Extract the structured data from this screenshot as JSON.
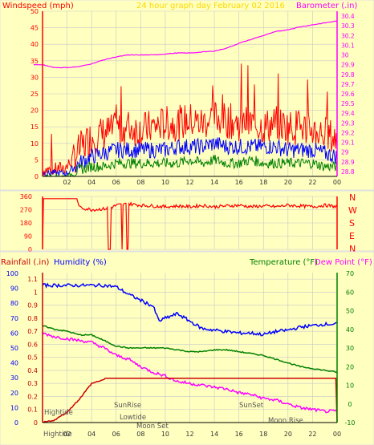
{
  "header": {
    "wind_label": "Windspeed (mph)",
    "title": "24 hour graph day   February 02 2016",
    "baro_label": "Barometer (.in)"
  },
  "direction": {
    "letters": [
      "N",
      "W",
      "S",
      "E",
      "N"
    ]
  },
  "bottom_header": {
    "rain_label": "Rainfall (.in)",
    "humidity_label": "Humidity (%)",
    "temp_label": "Temperature (°F)",
    "dew_label": "Dew Point (°F)"
  },
  "colors": {
    "wind_gust": "#ff0000",
    "wind_avg": "#0000ff",
    "wind_min": "#008000",
    "barometer": "#ff00ff",
    "direction": "#ff0000",
    "humidity": "#0000ff",
    "temperature": "#008000",
    "dewpoint": "#ff00ff",
    "rainfall": "#cc0000",
    "plot_bg": "#ffffc0",
    "grid": "#c8c8c8"
  },
  "chart_data": [
    {
      "type": "line",
      "name": "windspeed",
      "x_ticks": [
        "02",
        "04",
        "06",
        "08",
        "10",
        "12",
        "14",
        "16",
        "18",
        "20",
        "22",
        "00"
      ],
      "y_left_ticks": [
        0,
        5,
        10,
        15,
        20,
        25,
        30,
        35,
        40,
        45,
        50
      ],
      "y_right_ticks": [
        "28.8",
        "28.9",
        "29",
        "29.1",
        "29.2",
        "29.3",
        "29.4",
        "29.5",
        "29.6",
        "29.7",
        "29.8",
        "29.9",
        "30",
        "30.1",
        "30.2",
        "30.3",
        "30.4"
      ],
      "ylim": [
        0,
        50
      ],
      "ylim_right": [
        28.75,
        30.45
      ],
      "series": [
        {
          "role": "gust",
          "x": [
            0,
            1,
            2,
            3,
            4,
            5,
            6,
            7,
            8,
            9,
            10,
            11,
            12,
            13,
            14,
            15,
            16,
            17,
            18,
            19,
            20,
            21,
            22,
            23,
            24
          ],
          "values": [
            2,
            2,
            3,
            8,
            12,
            13,
            14,
            15,
            14,
            15,
            16,
            16,
            17,
            16,
            18,
            17,
            16,
            16,
            15,
            16,
            15,
            15,
            14,
            13,
            11
          ]
        },
        {
          "role": "average",
          "x": [
            0,
            1,
            2,
            3,
            4,
            5,
            6,
            7,
            8,
            9,
            10,
            11,
            12,
            13,
            14,
            15,
            16,
            17,
            18,
            19,
            20,
            21,
            22,
            23,
            24
          ],
          "values": [
            1,
            1,
            1,
            4,
            6,
            7,
            8,
            8,
            8,
            8,
            8,
            9,
            9,
            9,
            10,
            9,
            9,
            9,
            9,
            9,
            8,
            8,
            8,
            7,
            6
          ]
        },
        {
          "role": "minimum",
          "x": [
            0,
            1,
            2,
            3,
            4,
            5,
            6,
            7,
            8,
            9,
            10,
            11,
            12,
            13,
            14,
            15,
            16,
            17,
            18,
            19,
            20,
            21,
            22,
            23,
            24
          ],
          "values": [
            0,
            0,
            0,
            2,
            3,
            3,
            4,
            4,
            4,
            4,
            4,
            4,
            5,
            4,
            5,
            4,
            4,
            5,
            4,
            4,
            4,
            4,
            4,
            3,
            3
          ]
        },
        {
          "role": "barometer",
          "x": [
            0,
            1,
            2,
            3,
            4,
            5,
            6,
            7,
            8,
            9,
            10,
            11,
            12,
            13,
            14,
            15,
            16,
            17,
            18,
            19,
            20,
            21,
            22,
            23,
            24
          ],
          "values": [
            29.9,
            29.87,
            29.87,
            29.88,
            29.91,
            29.95,
            29.98,
            30.0,
            30.0,
            30.0,
            30.01,
            30.02,
            30.02,
            30.03,
            30.04,
            30.07,
            30.12,
            30.16,
            30.2,
            30.24,
            30.26,
            30.29,
            30.31,
            30.33,
            30.35
          ]
        }
      ]
    },
    {
      "type": "line",
      "name": "wind_direction",
      "y_ticks": [
        0,
        90,
        180,
        270,
        360
      ],
      "ylim": [
        0,
        360
      ],
      "series": [
        {
          "role": "direction",
          "x": [
            0,
            0.05,
            0.6,
            1.5,
            2.8,
            3.0,
            4,
            5,
            5.6,
            6,
            7,
            8,
            9,
            10,
            11,
            12,
            13,
            14,
            15,
            16,
            17,
            18,
            19,
            20,
            21,
            22,
            23,
            24
          ],
          "values": [
            0,
            345,
            345,
            345,
            345,
            285,
            270,
            275,
            285,
            300,
            310,
            300,
            295,
            290,
            295,
            290,
            298,
            290,
            295,
            300,
            290,
            295,
            290,
            300,
            295,
            290,
            300,
            290
          ]
        }
      ]
    },
    {
      "type": "line",
      "name": "temp_humidity_rain",
      "y_rain_ticks": [
        "0",
        "0.1",
        "0.2",
        "0.3",
        "0.4",
        "0.5",
        "0.6",
        "0.7",
        "0.8",
        "0.9",
        "1",
        "1.1"
      ],
      "y_humidity_ticks": [
        0,
        10,
        20,
        30,
        40,
        50,
        60,
        70,
        80,
        90,
        100
      ],
      "y_temp_ticks": [
        -10,
        0,
        10,
        20,
        30,
        40,
        50,
        60,
        70
      ],
      "ylim_rain": [
        0,
        1.15
      ],
      "ylim_humidity": [
        0,
        100
      ],
      "ylim_temp": [
        -10,
        70
      ],
      "annotations": [
        "Hightide",
        "Hightide",
        "SunRise",
        "Lowtide",
        "Moon Set",
        "SunSet",
        "Moon Rise"
      ],
      "series": [
        {
          "role": "humidity",
          "x": [
            0,
            1,
            2,
            3,
            4,
            5,
            6,
            7,
            8,
            9,
            9.5,
            10,
            11,
            12,
            13,
            14,
            15,
            16,
            17,
            18,
            19,
            20,
            21,
            22,
            23,
            24
          ],
          "values": [
            92,
            92,
            92,
            92,
            92,
            92,
            91,
            86,
            82,
            78,
            68,
            70,
            73,
            68,
            63,
            62,
            61,
            60,
            60,
            59,
            61,
            62,
            64,
            65,
            66,
            66
          ]
        },
        {
          "role": "temperature",
          "x": [
            0,
            1,
            2,
            3,
            4,
            5,
            6,
            7,
            8,
            9,
            10,
            11,
            12,
            13,
            14,
            15,
            16,
            17,
            18,
            19,
            20,
            21,
            22,
            23,
            24
          ],
          "values": [
            42,
            40,
            39,
            37,
            37,
            34,
            31,
            30,
            30,
            30,
            30,
            29,
            28,
            28,
            29,
            29,
            28,
            27,
            26,
            24,
            22,
            20,
            19,
            18,
            17
          ]
        },
        {
          "role": "dewpoint",
          "x": [
            0,
            1,
            2,
            3,
            4,
            5,
            6,
            7,
            8,
            9,
            10,
            11,
            12,
            13,
            14,
            15,
            16,
            17,
            18,
            19,
            20,
            21,
            22,
            23,
            24
          ],
          "values": [
            38,
            36,
            35,
            34,
            33,
            30,
            26,
            24,
            20,
            17,
            15,
            12,
            11,
            10,
            9,
            8,
            6,
            5,
            3,
            2,
            0,
            -2,
            -3,
            -4,
            -4
          ]
        },
        {
          "role": "rainfall",
          "x": [
            0,
            1,
            2,
            3,
            4,
            5,
            5.2,
            23.9,
            24
          ],
          "values": [
            0,
            0.02,
            0.08,
            0.18,
            0.3,
            0.33,
            0.34,
            0.34,
            0
          ]
        }
      ]
    }
  ]
}
